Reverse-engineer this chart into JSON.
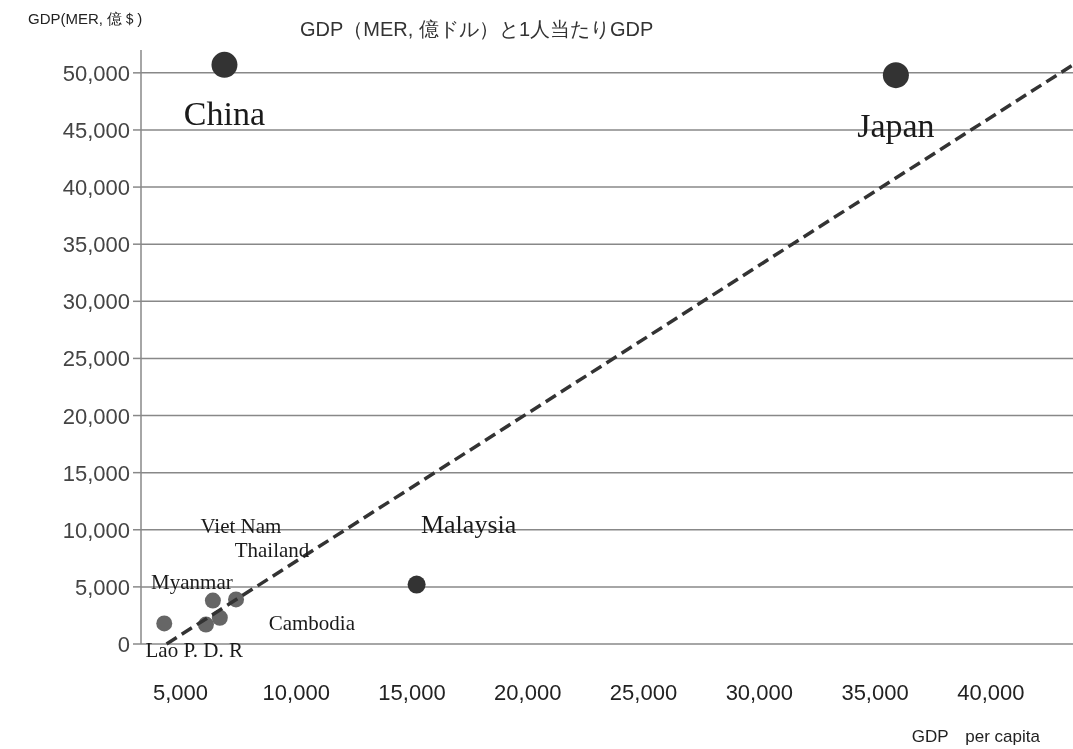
{
  "chart_data": {
    "type": "scatter",
    "title": "GDP（MER, 億ドル）と1人当たりGDP",
    "ylabel": "GDP(MER, 億＄)",
    "xlabel": "GDP　per capita",
    "xlim": [
      2950,
      43550
    ],
    "ylim": [
      0,
      52000
    ],
    "xticks": [
      {
        "value": 5000,
        "label": "5,000"
      },
      {
        "value": 10000,
        "label": "10,000"
      },
      {
        "value": 15000,
        "label": "15,000"
      },
      {
        "value": 20000,
        "label": "20,000"
      },
      {
        "value": 25000,
        "label": "25,000"
      },
      {
        "value": 30000,
        "label": "30,000"
      },
      {
        "value": 35000,
        "label": "35,000"
      },
      {
        "value": 40000,
        "label": "40,000"
      }
    ],
    "yticks": [
      0,
      {
        "value": 5000,
        "label": "5,000"
      },
      {
        "value": 10000,
        "label": "10,000"
      },
      {
        "value": 15000,
        "label": "15,000"
      },
      {
        "value": 20000,
        "label": "20,000"
      },
      {
        "value": 25000,
        "label": "25,000"
      },
      {
        "value": 30000,
        "label": "30,000"
      },
      {
        "value": 35000,
        "label": "35,000"
      },
      {
        "value": 40000,
        "label": "40,000"
      },
      {
        "value": 45000,
        "label": "45,000"
      },
      {
        "value": 50000,
        "label": "50,000"
      }
    ],
    "grid": "y",
    "series": [
      {
        "color": "#333333",
        "x": [
          6900,
          35900
        ],
        "values": [
          50700,
          49800
        ]
      },
      {
        "color": "#333333",
        "x": [
          15200
        ],
        "values": [
          5200
        ]
      },
      {
        "color": "#666666",
        "x": [
          6400,
          7400,
          6100,
          6700,
          4300
        ],
        "values": [
          3800,
          3900,
          1700,
          2300,
          1800
        ]
      },
      {
        "type": "line",
        "color": "#333333",
        "line_style": "dashed",
        "x": [
          4400,
          43550
        ],
        "values": [
          0,
          50700
        ]
      }
    ],
    "annotations": [
      {
        "text": "China",
        "x": 6900,
        "y": 50700
      },
      {
        "text": "Japan",
        "x": 35900,
        "y": 49800
      },
      {
        "text": "Malaysia",
        "x": 15200,
        "y": 5200
      },
      {
        "text": "Viet Nam",
        "x": 6400,
        "y": 3800
      },
      {
        "text": "Thailand",
        "x": 7400,
        "y": 3900
      },
      {
        "text": "Myanmar",
        "x": 6100,
        "y": 1700
      },
      {
        "text": "Cambodia",
        "x": 6700,
        "y": 2300
      },
      {
        "text": "Lao P. D. R",
        "x": 4300,
        "y": 1800
      }
    ]
  }
}
